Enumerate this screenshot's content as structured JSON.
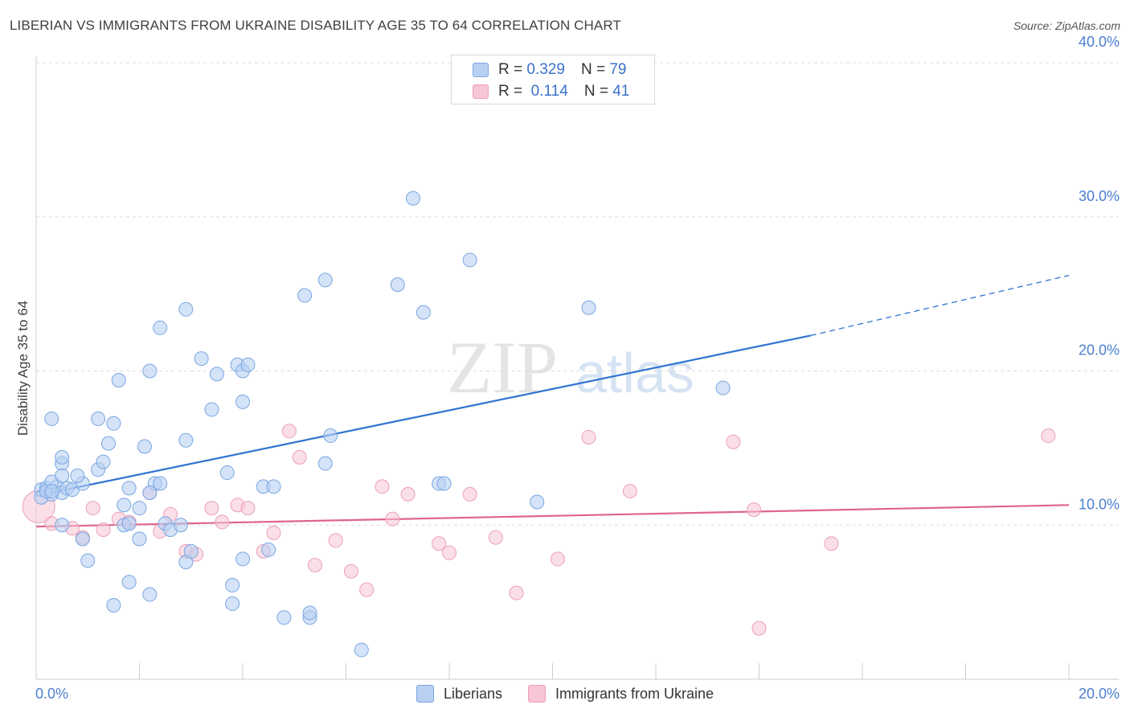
{
  "title": "LIBERIAN VS IMMIGRANTS FROM UKRAINE DISABILITY AGE 35 TO 64 CORRELATION CHART",
  "source": "Source: ZipAtlas.com",
  "watermark": {
    "zip": "ZIP",
    "atlas": "atlas"
  },
  "legend": {
    "rows": [
      {
        "r_label": "R =",
        "r_value": "0.329",
        "n_label": "N =",
        "n_value": "79"
      },
      {
        "r_label": "R =",
        "r_value": "0.114",
        "n_label": "N =",
        "n_value": "41"
      }
    ]
  },
  "bottom_legend": {
    "series1": "Liberians",
    "series2": "Immigrants from Ukraine"
  },
  "colors": {
    "blue_fill": "#b8d1f3",
    "blue_stroke": "#7aa6e0",
    "blue_line": "#2f74d0",
    "pink_fill": "#f7c5d4",
    "pink_stroke": "#eba0b8",
    "pink_line": "#e0648f",
    "grid": "#dddddd",
    "tick_text": "#4a7fcf"
  },
  "chart_data": {
    "type": "scatter",
    "title": "LIBERIAN VS IMMIGRANTS FROM UKRAINE DISABILITY AGE 35 TO 64 CORRELATION CHART",
    "xlabel": "",
    "ylabel": "Disability Age 35 to 64",
    "xlim": [
      0,
      20
    ],
    "ylim": [
      0,
      40
    ],
    "x_tick_labels": [
      "0.0%",
      "20.0%"
    ],
    "y_ticks": [
      10,
      20,
      30,
      40
    ],
    "y_tick_labels": [
      "10.0%",
      "20.0%",
      "30.0%",
      "40.0%"
    ],
    "grid": true,
    "legend_position": "top-center",
    "series": [
      {
        "name": "Liberians",
        "color": "#b8d1f3",
        "trend": {
          "x": [
            0,
            15
          ],
          "y": [
            11.9,
            22.3
          ],
          "dashed_to": [
            20,
            26.2
          ]
        },
        "points": [
          [
            0.1,
            12.3
          ],
          [
            0.2,
            12.4
          ],
          [
            0.1,
            11.8
          ],
          [
            0.3,
            12.0
          ],
          [
            0.2,
            12.2
          ],
          [
            0.4,
            12.5
          ],
          [
            0.5,
            12.1
          ],
          [
            0.6,
            12.4
          ],
          [
            0.7,
            12.3
          ],
          [
            0.9,
            12.7
          ],
          [
            0.3,
            12.8
          ],
          [
            0.5,
            14.0
          ],
          [
            0.8,
            13.2
          ],
          [
            1.2,
            13.6
          ],
          [
            0.5,
            14.4
          ],
          [
            1.3,
            14.1
          ],
          [
            0.5,
            13.2
          ],
          [
            1.4,
            15.3
          ],
          [
            1.5,
            16.6
          ],
          [
            0.3,
            16.9
          ],
          [
            1.2,
            16.9
          ],
          [
            2.1,
            15.1
          ],
          [
            1.6,
            19.4
          ],
          [
            2.2,
            20.0
          ],
          [
            2.4,
            22.8
          ],
          [
            2.9,
            24.0
          ],
          [
            2.9,
            15.5
          ],
          [
            3.2,
            20.8
          ],
          [
            3.4,
            17.5
          ],
          [
            3.5,
            19.8
          ],
          [
            3.7,
            13.4
          ],
          [
            3.9,
            20.4
          ],
          [
            4.0,
            20.0
          ],
          [
            4.1,
            20.4
          ],
          [
            4.0,
            18.0
          ],
          [
            4.4,
            12.5
          ],
          [
            4.6,
            12.5
          ],
          [
            5.2,
            24.9
          ],
          [
            5.6,
            25.9
          ],
          [
            5.7,
            15.8
          ],
          [
            5.6,
            14.0
          ],
          [
            7.0,
            25.6
          ],
          [
            7.5,
            23.8
          ],
          [
            7.3,
            31.2
          ],
          [
            8.4,
            27.2
          ],
          [
            7.8,
            12.7
          ],
          [
            7.9,
            12.7
          ],
          [
            9.7,
            11.5
          ],
          [
            10.7,
            24.1
          ],
          [
            13.3,
            18.9
          ],
          [
            0.5,
            10.0
          ],
          [
            0.9,
            9.1
          ],
          [
            1.0,
            7.7
          ],
          [
            1.7,
            11.3
          ],
          [
            1.7,
            10.0
          ],
          [
            1.8,
            10.1
          ],
          [
            2.0,
            11.1
          ],
          [
            2.0,
            9.1
          ],
          [
            2.3,
            12.7
          ],
          [
            2.5,
            10.1
          ],
          [
            2.6,
            9.7
          ],
          [
            2.8,
            10.0
          ],
          [
            2.9,
            7.6
          ],
          [
            3.0,
            8.3
          ],
          [
            3.8,
            6.1
          ],
          [
            4.0,
            7.8
          ],
          [
            4.5,
            8.4
          ],
          [
            4.8,
            4.0
          ],
          [
            5.3,
            4.0
          ],
          [
            5.3,
            4.3
          ],
          [
            6.3,
            1.9
          ],
          [
            1.5,
            4.8
          ],
          [
            1.8,
            6.3
          ],
          [
            2.2,
            5.5
          ],
          [
            3.8,
            4.9
          ],
          [
            1.8,
            12.4
          ],
          [
            0.3,
            12.2
          ],
          [
            2.2,
            12.1
          ],
          [
            2.4,
            12.7
          ]
        ]
      },
      {
        "name": "Immigrants from Ukraine",
        "color": "#f7c5d4",
        "trend": {
          "x": [
            0,
            20
          ],
          "y": [
            9.9,
            11.3
          ]
        },
        "points": [
          [
            0.05,
            11.2
          ],
          [
            0.3,
            10.1
          ],
          [
            0.7,
            9.8
          ],
          [
            0.9,
            9.2
          ],
          [
            1.1,
            11.1
          ],
          [
            1.3,
            9.7
          ],
          [
            1.6,
            10.4
          ],
          [
            1.8,
            10.2
          ],
          [
            2.2,
            12.1
          ],
          [
            2.4,
            9.6
          ],
          [
            2.6,
            10.7
          ],
          [
            2.9,
            8.3
          ],
          [
            3.1,
            8.1
          ],
          [
            3.4,
            11.1
          ],
          [
            3.6,
            10.2
          ],
          [
            3.9,
            11.3
          ],
          [
            4.1,
            11.1
          ],
          [
            4.4,
            8.3
          ],
          [
            4.6,
            9.5
          ],
          [
            4.9,
            16.1
          ],
          [
            5.1,
            14.4
          ],
          [
            5.4,
            7.4
          ],
          [
            5.8,
            9.0
          ],
          [
            6.1,
            7.0
          ],
          [
            6.4,
            5.8
          ],
          [
            6.7,
            12.5
          ],
          [
            6.9,
            10.4
          ],
          [
            7.2,
            12.0
          ],
          [
            7.8,
            8.8
          ],
          [
            8.0,
            8.2
          ],
          [
            8.4,
            12.0
          ],
          [
            8.9,
            9.2
          ],
          [
            9.3,
            5.6
          ],
          [
            10.1,
            7.8
          ],
          [
            10.7,
            15.7
          ],
          [
            11.5,
            12.2
          ],
          [
            13.5,
            15.4
          ],
          [
            13.9,
            11.0
          ],
          [
            14.0,
            3.3
          ],
          [
            15.4,
            8.8
          ],
          [
            19.6,
            15.8
          ]
        ]
      }
    ]
  }
}
